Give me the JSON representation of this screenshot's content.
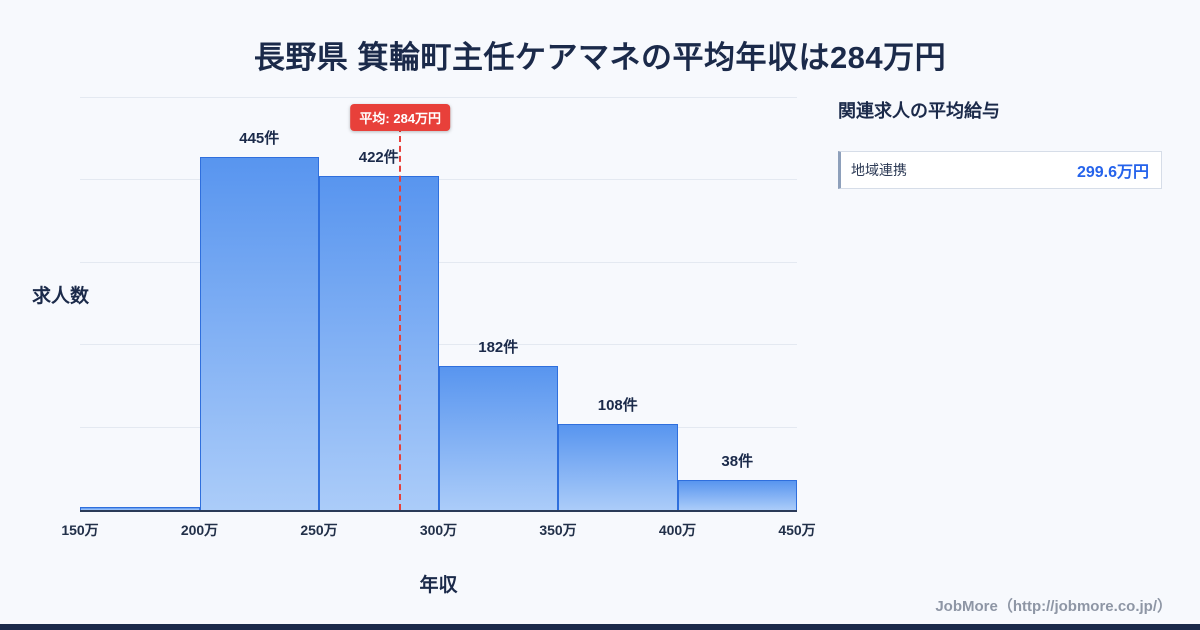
{
  "title": "長野県 箕輪町主任ケアマネの平均年収は284万円",
  "chart_data": {
    "type": "bar",
    "title": "長野県 箕輪町主任ケアマネの平均年収は284万円",
    "xlabel": "年収",
    "ylabel": "求人数",
    "x_domain": [
      150,
      450
    ],
    "x_tick_labels": [
      "150万",
      "200万",
      "250万",
      "300万",
      "350万",
      "400万",
      "450万"
    ],
    "categories": [
      "150万-200万",
      "200万-250万",
      "250万-300万",
      "300万-350万",
      "350万-400万",
      "400万-450万"
    ],
    "values": [
      4,
      445,
      422,
      182,
      108,
      38
    ],
    "bar_labels": [
      "",
      "445件",
      "422件",
      "182件",
      "108件",
      "38件"
    ],
    "unit": "件",
    "mean_line": {
      "label": "平均: 284万円",
      "value": 284
    },
    "ylim": [
      0,
      520
    ],
    "grid": true,
    "legend": false
  },
  "side_panel": {
    "title": "関連求人の平均給与",
    "items": [
      {
        "label": "地域連携",
        "value": "299.6万円"
      }
    ]
  },
  "footer": {
    "text": "JobMore（http://jobmore.co.jp/）"
  },
  "colors": {
    "background": "#f7f9fd",
    "title_text": "#1b2a4a",
    "bar_fill_top": "#5895ef",
    "bar_fill_bottom": "#abccf9",
    "bar_border": "#2f6fdd",
    "mean_line_red": "#e8403a",
    "value_blue": "#2563eb",
    "axis_line": "#2a3a58",
    "footer_text": "#8e96a5"
  }
}
